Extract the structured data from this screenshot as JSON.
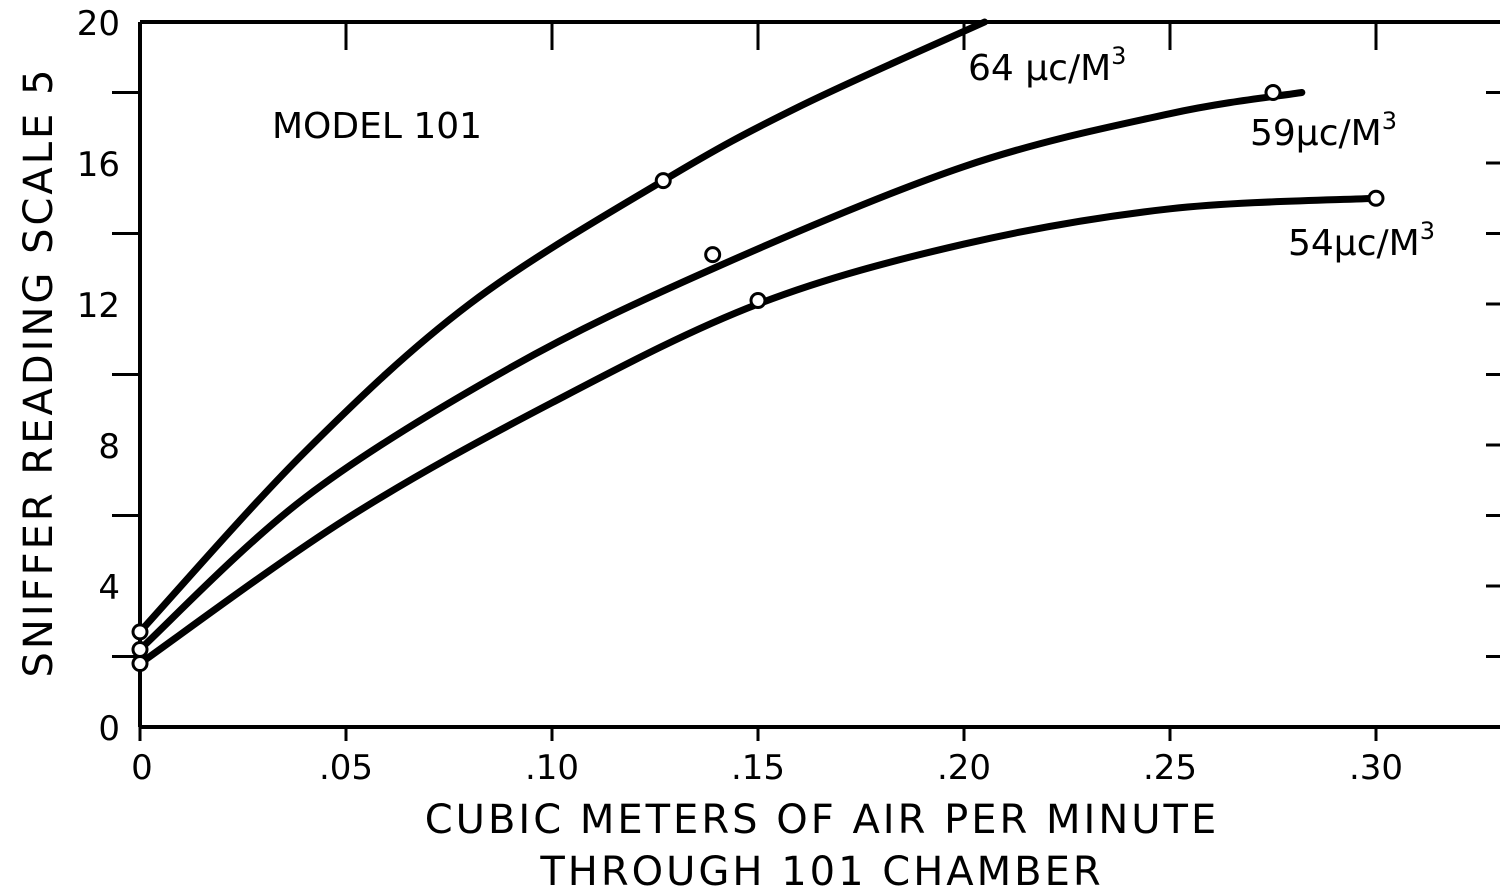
{
  "chart_data": {
    "type": "line",
    "title": "",
    "xlabel": [
      "CUBIC METERS OF AIR PER MINUTE",
      "THROUGH 101 CHAMBER"
    ],
    "ylabel": "SNIFFER READING SCALE 5",
    "xlim": [
      0,
      0.32
    ],
    "ylim": [
      0,
      20
    ],
    "x_ticks": [
      0,
      0.05,
      0.1,
      0.15,
      0.2,
      0.25,
      0.3
    ],
    "x_tick_labels": [
      "0",
      ".05",
      ".10",
      ".15",
      ".20",
      ".25",
      ".30"
    ],
    "y_ticks": [
      0,
      4,
      8,
      12,
      16,
      20
    ],
    "y_tick_labels": [
      "0",
      "4",
      "8",
      "12",
      "16",
      "20"
    ],
    "y_minor_ticks": [
      2,
      6,
      10,
      14,
      18
    ],
    "grid": false,
    "annotation": "MODEL 101",
    "series": [
      {
        "name": "64 μc/M³",
        "label_main": "64 μc/M",
        "label_sup": "3",
        "x": [
          0,
          0.04,
          0.08,
          0.127,
          0.16,
          0.205
        ],
        "y": [
          2.7,
          7.8,
          12.0,
          15.5,
          17.6,
          20.0
        ],
        "points": [
          {
            "x": 0,
            "y": 2.7
          },
          {
            "x": 0.127,
            "y": 15.5
          }
        ]
      },
      {
        "name": "59 μc/M³",
        "label_main": "59μc/M",
        "label_sup": "3",
        "x": [
          0,
          0.04,
          0.09,
          0.139,
          0.2,
          0.25,
          0.282
        ],
        "y": [
          2.2,
          6.5,
          10.2,
          13.0,
          15.9,
          17.4,
          18.0
        ],
        "points": [
          {
            "x": 0,
            "y": 2.2
          },
          {
            "x": 0.139,
            "y": 13.4
          },
          {
            "x": 0.275,
            "y": 18.0
          }
        ]
      },
      {
        "name": "54 μc/M³",
        "label_main": "54μc/M",
        "label_sup": "3",
        "x": [
          0,
          0.05,
          0.1,
          0.15,
          0.2,
          0.25,
          0.3
        ],
        "y": [
          1.8,
          5.9,
          9.2,
          12.0,
          13.7,
          14.7,
          15.0
        ],
        "points": [
          {
            "x": 0,
            "y": 1.8
          },
          {
            "x": 0.15,
            "y": 12.1
          },
          {
            "x": 0.3,
            "y": 15.0
          }
        ]
      }
    ]
  }
}
